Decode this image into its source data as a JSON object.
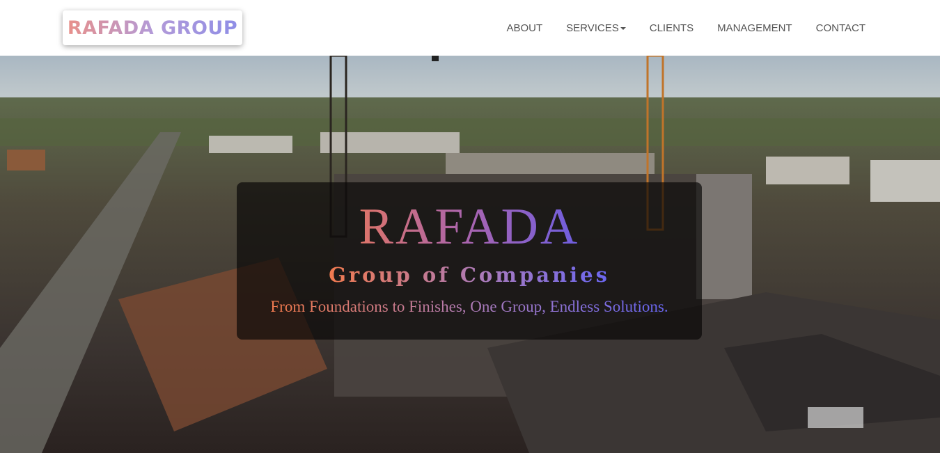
{
  "header": {
    "logo": "RAFADA GROUP",
    "nav": [
      "ABOUT",
      "SERVICES",
      "CLIENTS",
      "MANAGEMENT",
      "CONTACT"
    ]
  },
  "hero": {
    "title": "RAFADA",
    "subtitle": "Group of Companies",
    "tagline": "From Foundations to Finishes, One Group, Endless Solutions."
  }
}
